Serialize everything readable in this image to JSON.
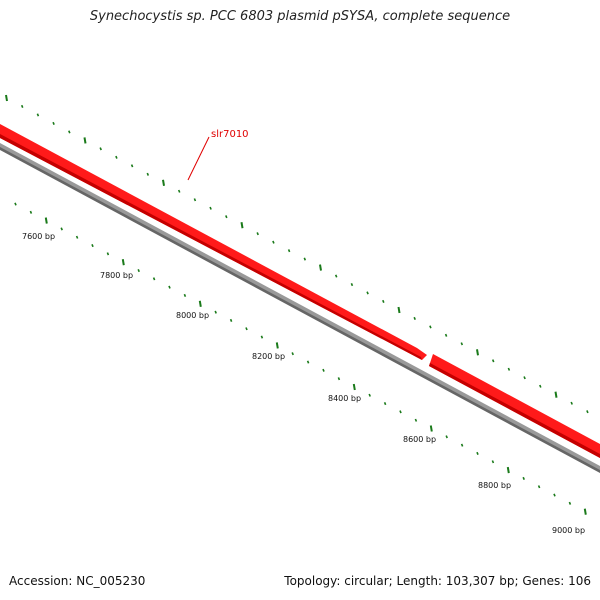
{
  "title": "Synechocystis sp. PCC 6803 plasmid pSYSA, complete sequence",
  "footer": {
    "accession": "Accession: NC_005230",
    "summary": "Topology: circular; Length: 103,307 bp; Genes: 106"
  },
  "gene": {
    "name": "slr7010",
    "color": "#ff1a1a"
  },
  "colors": {
    "backbone": "#777777",
    "ticks": "#1a7a1a",
    "label_line": "#e00000"
  },
  "scale_labels": [
    "7600 bp",
    "7800 bp",
    "8000 bp",
    "8200 bp",
    "8400 bp",
    "8600 bp",
    "8800 bp",
    "9000 bp"
  ]
}
